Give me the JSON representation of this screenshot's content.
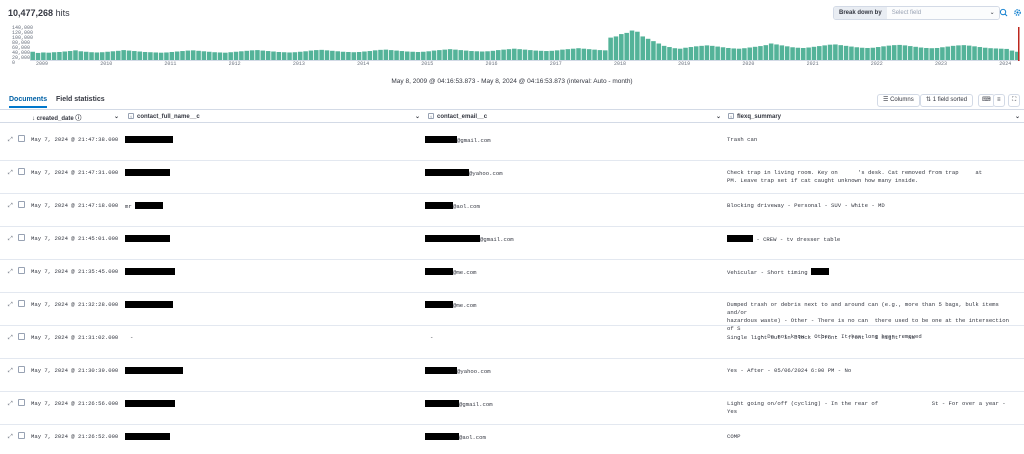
{
  "header": {
    "hits_count": "10,477,268",
    "hits_label": "hits",
    "breakdown_label": "Break down by",
    "breakdown_placeholder": "Select field"
  },
  "chart_data": {
    "type": "bar",
    "y_ticks": [
      "140,000",
      "120,000",
      "100,000",
      "80,000",
      "60,000",
      "40,000",
      "20,000",
      "0"
    ],
    "ylim": [
      0,
      140000
    ],
    "x_ticks": [
      "2009",
      "2010",
      "2011",
      "2012",
      "2013",
      "2014",
      "2015",
      "2016",
      "2017",
      "2018",
      "2019",
      "2020",
      "2021",
      "2022",
      "2023",
      "2024"
    ],
    "bar_color": "#54b399",
    "values": [
      35000,
      30000,
      32000,
      31000,
      33000,
      34000,
      36000,
      38000,
      41000,
      37000,
      35000,
      33000,
      32000,
      33000,
      35000,
      37000,
      39000,
      42000,
      40000,
      38000,
      36000,
      34000,
      33000,
      32000,
      31000,
      32000,
      34000,
      36000,
      38000,
      40000,
      41000,
      39000,
      37000,
      35000,
      33000,
      32000,
      31000,
      33000,
      35000,
      37000,
      39000,
      41000,
      42000,
      40000,
      38000,
      36000,
      34000,
      33000,
      32000,
      33000,
      35000,
      37000,
      40000,
      42000,
      43000,
      41000,
      39000,
      37000,
      35000,
      34000,
      33000,
      34000,
      36000,
      38000,
      41000,
      43000,
      44000,
      42000,
      40000,
      38000,
      36000,
      35000,
      34000,
      35000,
      37000,
      40000,
      42000,
      44000,
      46000,
      44000,
      42000,
      40000,
      38000,
      37000,
      36000,
      37000,
      39000,
      42000,
      44000,
      46000,
      48000,
      46000,
      44000,
      42000,
      40000,
      39000,
      38000,
      39000,
      41000,
      44000,
      46000,
      48000,
      50000,
      48000,
      46000,
      44000,
      42000,
      41000,
      95000,
      100000,
      110000,
      115000,
      125000,
      120000,
      100000,
      90000,
      80000,
      70000,
      60000,
      55000,
      50000,
      48000,
      52000,
      55000,
      58000,
      60000,
      62000,
      60000,
      57000,
      54000,
      51000,
      49000,
      48000,
      50000,
      53000,
      56000,
      59000,
      63000,
      70000,
      66000,
      62000,
      58000,
      54000,
      52000,
      51000,
      53000,
      56000,
      59000,
      62000,
      65000,
      66000,
      63000,
      60000,
      57000,
      54000,
      52000,
      51000,
      52000,
      55000,
      58000,
      61000,
      63000,
      64000,
      62000,
      59000,
      56000,
      53000,
      51000,
      50000,
      51000,
      54000,
      57000,
      60000,
      62000,
      63000,
      61000,
      58000,
      55000,
      52000,
      50000,
      49000,
      48000,
      47000,
      40000,
      35000
    ],
    "time_range_text": "May 8, 2009 @ 04:16:53.873 - May 8, 2024 @ 04:16:53.873 (interval: Auto - month)"
  },
  "tabs": [
    {
      "label": "Documents",
      "active": true
    },
    {
      "label": "Field statistics",
      "active": false
    }
  ],
  "toolbar": {
    "columns_label": "Columns",
    "sorted_label": "1 field sorted"
  },
  "columns": {
    "date": "created_date",
    "name": "contact_full_name__c",
    "email": "contact_email__c",
    "summary": "flexq_summary"
  },
  "rows": [
    {
      "date": "May 7, 2024 @ 21:47:38.000",
      "name_prefix": "",
      "email_suffix": "@gmail.com",
      "summary": "Trash can"
    },
    {
      "date": "May 7, 2024 @ 21:47:31.000",
      "name_prefix": "",
      "email_suffix": "@yahoo.com",
      "summary": "Check trap in living room. Key on      's desk. Cat removed from trap     at\nPM. Leave trap set if cat caught unknown how many inside."
    },
    {
      "date": "May 7, 2024 @ 21:47:18.000",
      "name_prefix": "mr",
      "email_suffix": "@aol.com",
      "summary": "Blocking driveway - Personal - SUV - White - MD"
    },
    {
      "date": "May 7, 2024 @ 21:45:01.000",
      "name_prefix": "",
      "email_suffix": "@gmail.com",
      "summary": " - CREW - tv dresser table"
    },
    {
      "date": "May 7, 2024 @ 21:35:45.000",
      "name_prefix": "",
      "email_suffix": "@me.com",
      "summary": "Vehicular - Short timing"
    },
    {
      "date": "May 7, 2024 @ 21:32:28.000",
      "name_prefix": "",
      "email_suffix": "@me.com",
      "summary": "Dumped trash or debris next to and around can (e.g., more than 5 bags, bulk items and/or\nhazardous waste) - Other - There is no can  there used to be one at the intersection of S\n          - Do not know - Other - It has long been removed"
    },
    {
      "date": "May 7, 2024 @ 21:31:02.000",
      "name_prefix": "-",
      "email_suffix": "-",
      "summary": "Single light out in block - Front - front - 1 night - No"
    },
    {
      "date": "May 7, 2024 @ 21:30:39.000",
      "name_prefix": "",
      "email_suffix": "@yahoo.com",
      "summary": "Yes - After - 05/06/2024 6:00 PM - No"
    },
    {
      "date": "May 7, 2024 @ 21:26:56.000",
      "name_prefix": "",
      "email_suffix": "@gmail.com",
      "summary": "Light going on/off (cycling) - In the rear of                St - For over a year - Yes"
    },
    {
      "date": "May 7, 2024 @ 21:26:52.000",
      "name_prefix": "",
      "email_suffix": "@aol.com",
      "summary": "COMP"
    }
  ]
}
